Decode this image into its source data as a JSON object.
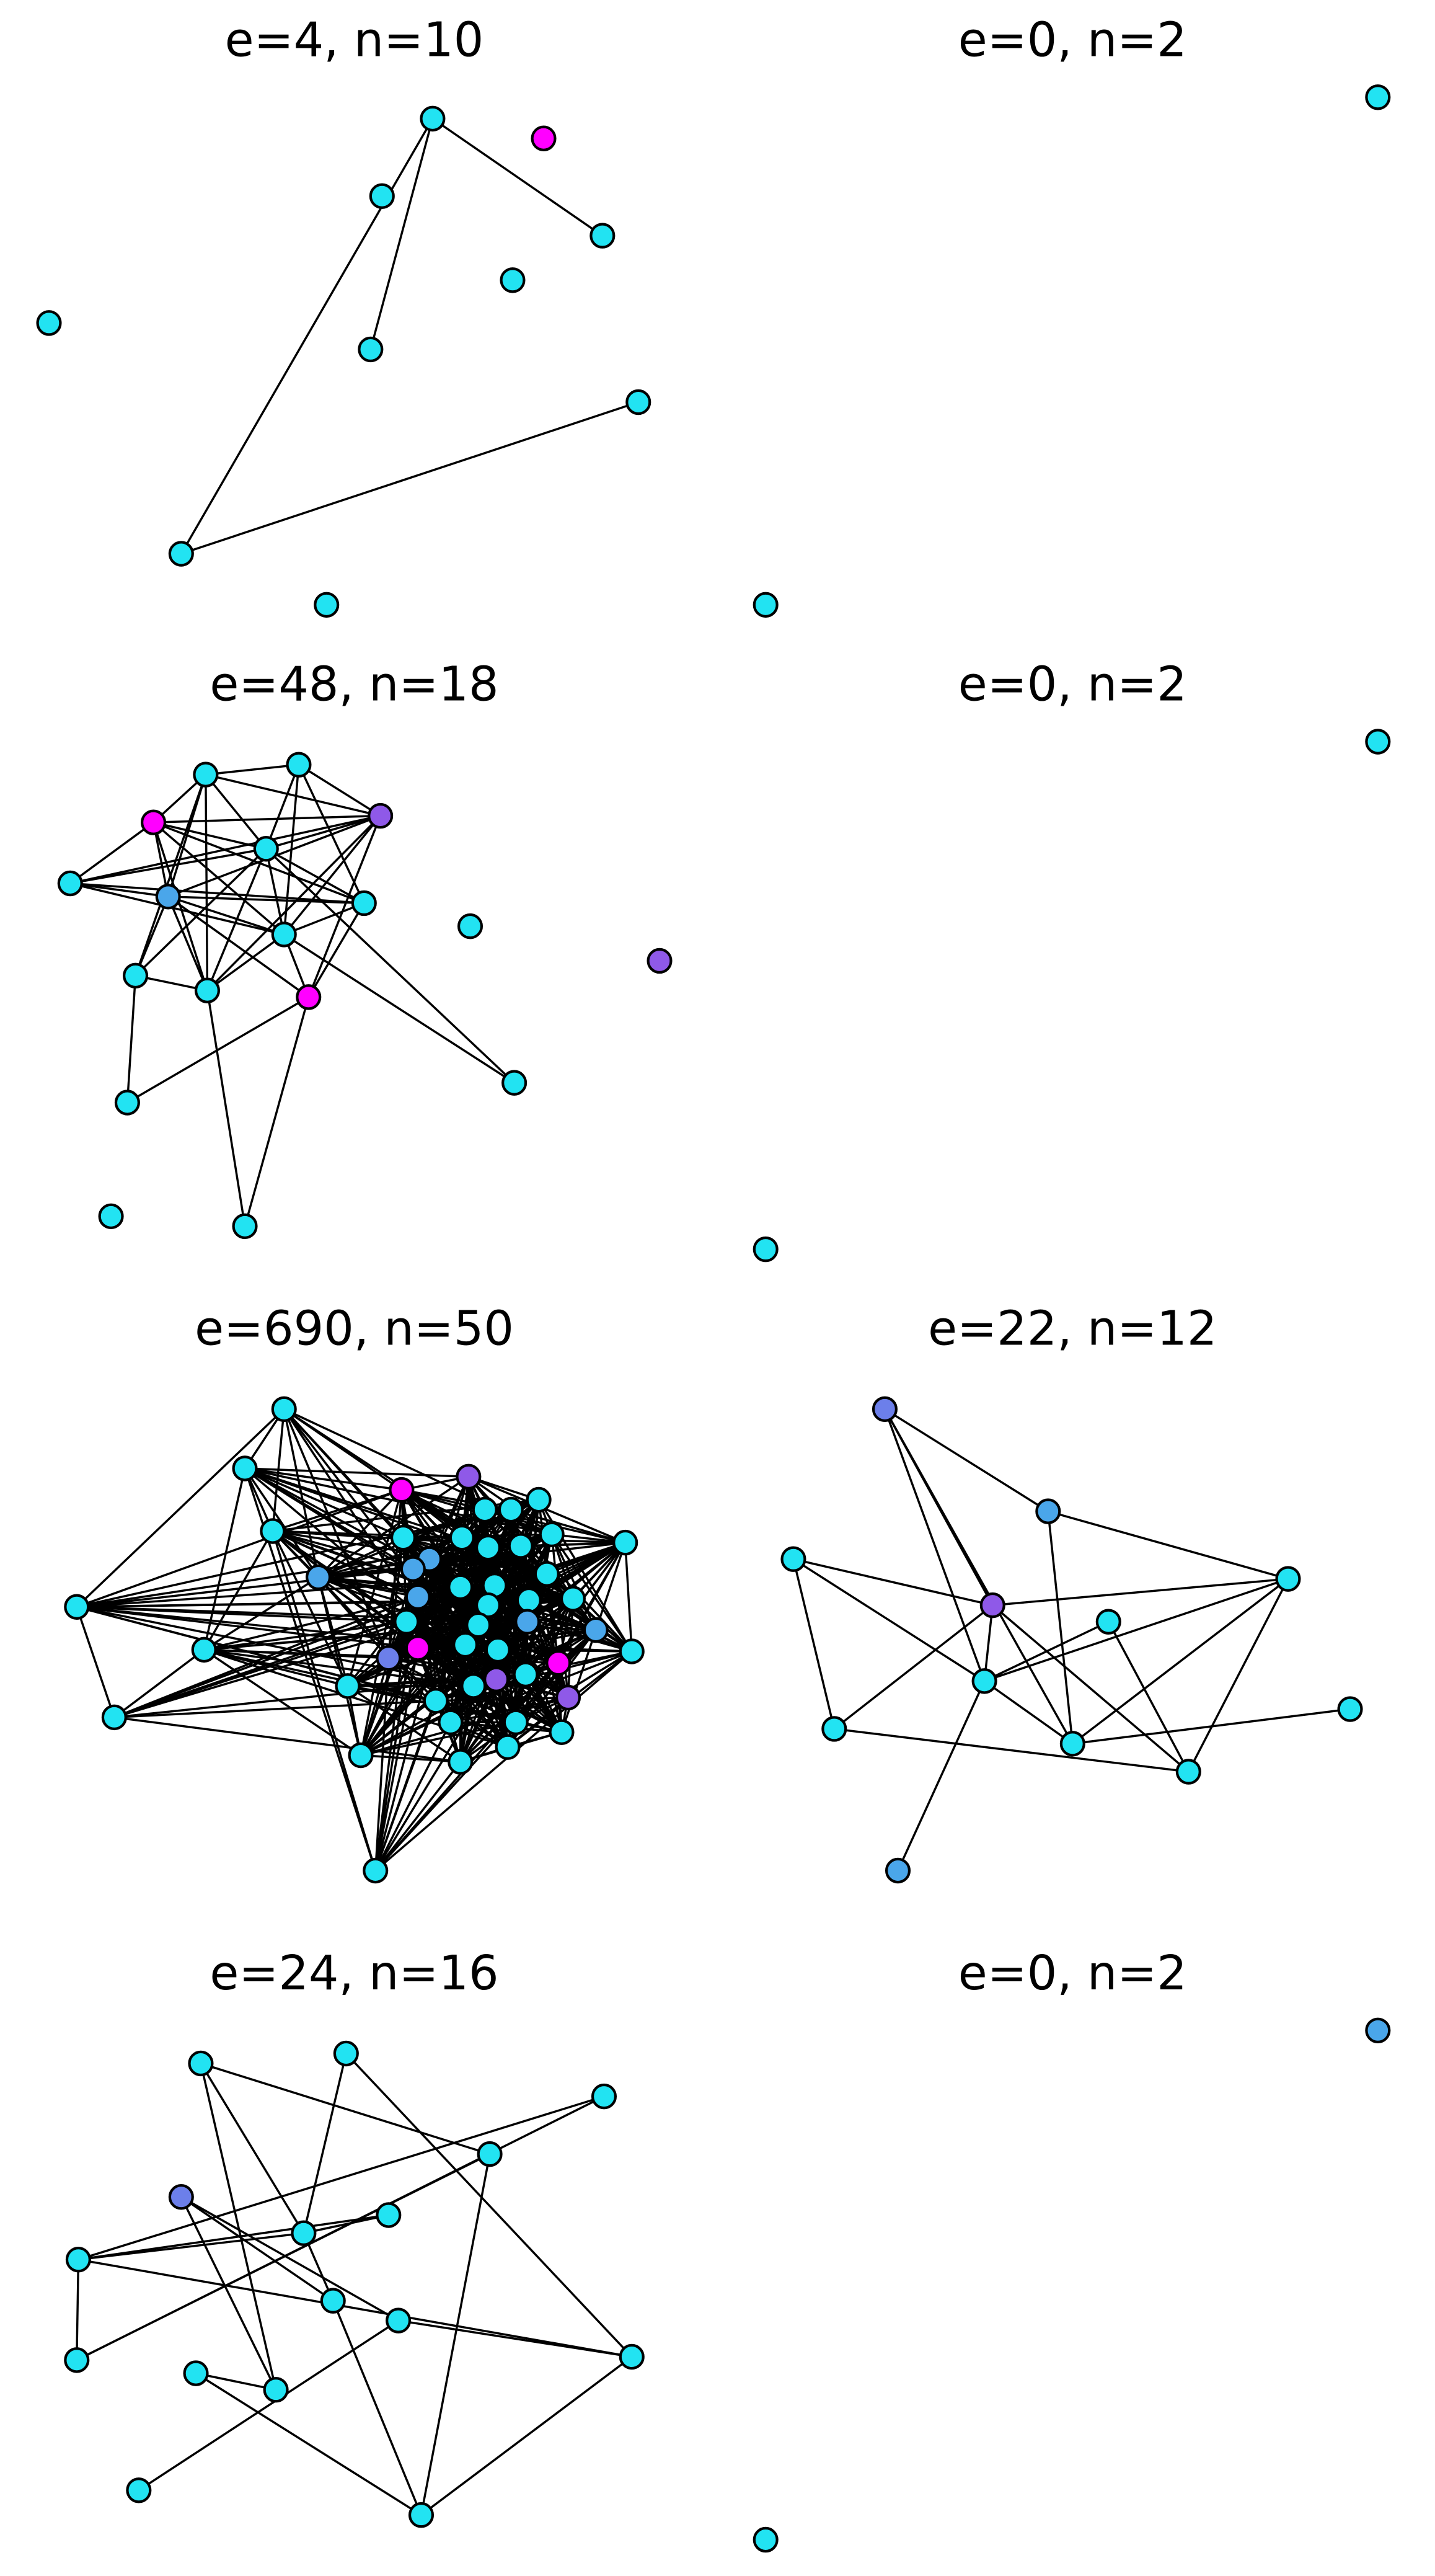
{
  "panels": [
    {
      "title": "e=4, n=10"
    },
    {
      "title": "e=0, n=2"
    },
    {
      "title": "e=48, n=18"
    },
    {
      "title": "e=0, n=2"
    },
    {
      "title": "e=690, n=50"
    },
    {
      "title": "e=22, n=12"
    },
    {
      "title": "e=24, n=16"
    },
    {
      "title": "e=0, n=2"
    }
  ]
}
